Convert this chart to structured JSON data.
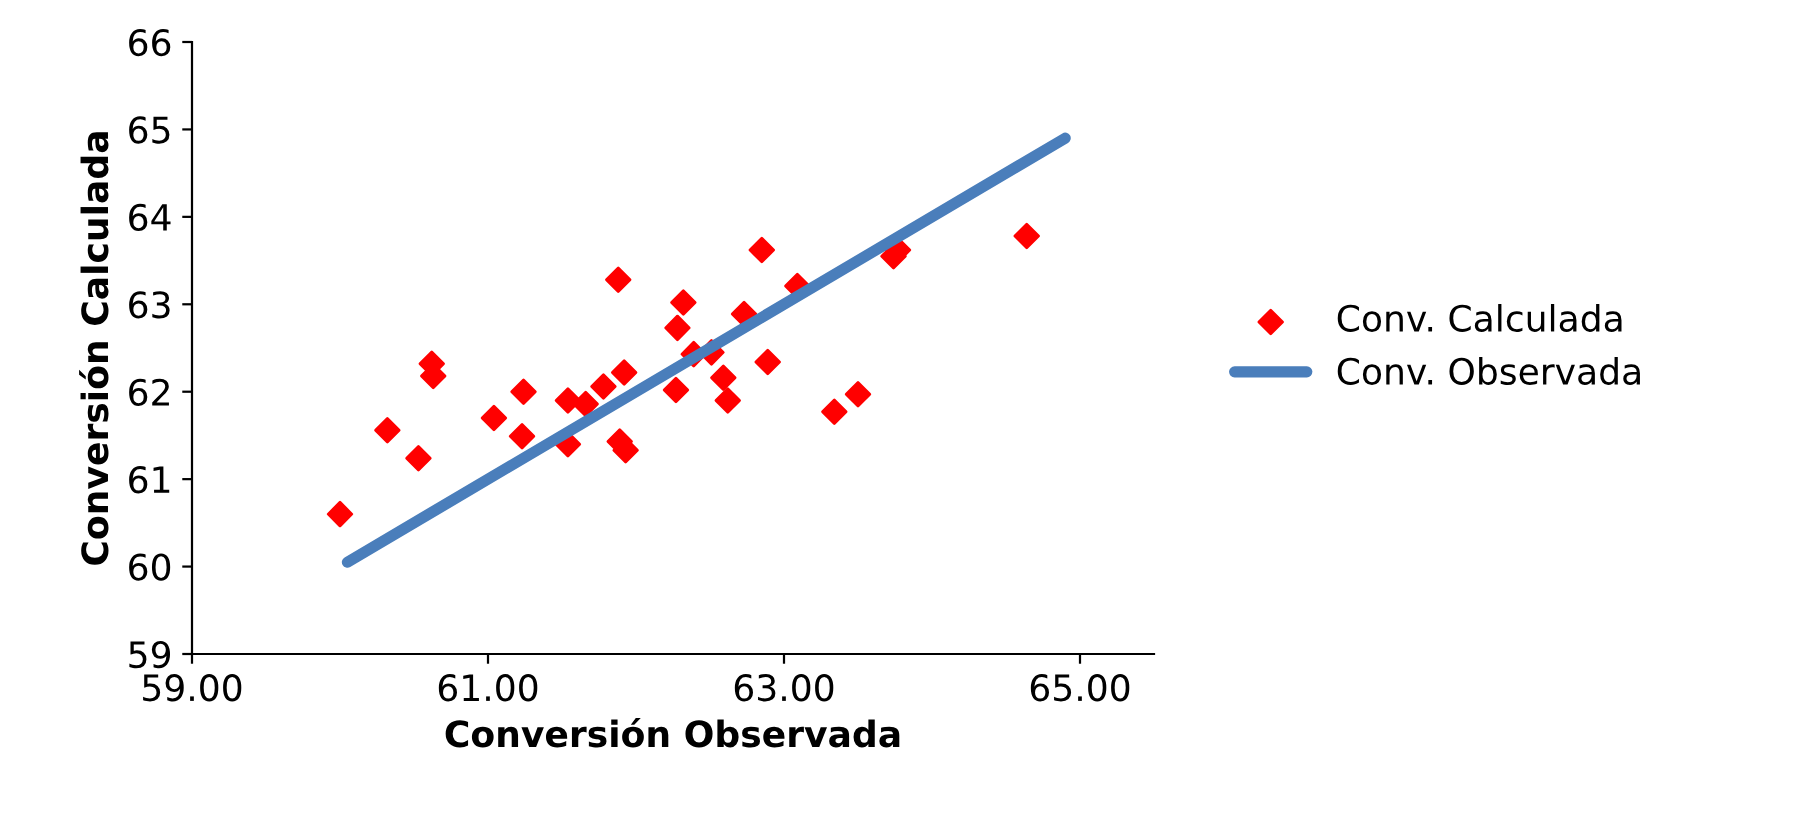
{
  "chart_data": {
    "type": "scatter",
    "xlabel": "Conversión Observada",
    "ylabel": "Conversión Calculada",
    "xlim": [
      59,
      65.5
    ],
    "xticks": [
      {
        "value": 59,
        "label": "59.00"
      },
      {
        "value": 61,
        "label": "61.00"
      },
      {
        "value": 63,
        "label": "63.00"
      },
      {
        "value": 65,
        "label": "65.00"
      }
    ],
    "ylim": [
      59,
      66
    ],
    "yticks": [
      59,
      60,
      61,
      62,
      63,
      64,
      65,
      66
    ],
    "grid": false,
    "legend": "right",
    "series": [
      {
        "name": "Conv. Calculada",
        "color": "#ff0000",
        "marker": "diamond",
        "x": [
          60.0,
          60.32,
          60.53,
          60.62,
          60.63,
          61.04,
          61.24,
          61.23,
          61.54,
          61.54,
          61.88,
          61.78,
          61.92,
          61.66,
          61.89,
          61.93,
          62.28,
          62.32,
          62.27,
          62.39,
          62.51,
          62.59,
          62.62,
          62.73,
          62.89,
          62.85,
          63.09,
          63.34,
          63.5,
          63.74,
          63.77,
          64.64
        ],
        "values": [
          60.6,
          61.56,
          61.24,
          62.32,
          62.18,
          61.7,
          62.0,
          61.49,
          61.9,
          61.4,
          63.28,
          62.06,
          62.22,
          61.86,
          61.43,
          61.33,
          62.73,
          63.02,
          62.02,
          62.43,
          62.45,
          62.16,
          61.9,
          62.89,
          62.34,
          63.62,
          63.21,
          61.77,
          61.97,
          63.55,
          63.62,
          63.78
        ]
      },
      {
        "name": "Conv. Observada",
        "type": "line",
        "color": "#4a7ebb",
        "marker": "none",
        "line_style": "solid",
        "x": [
          60.05,
          64.9
        ],
        "values": [
          60.05,
          64.9
        ]
      }
    ]
  }
}
